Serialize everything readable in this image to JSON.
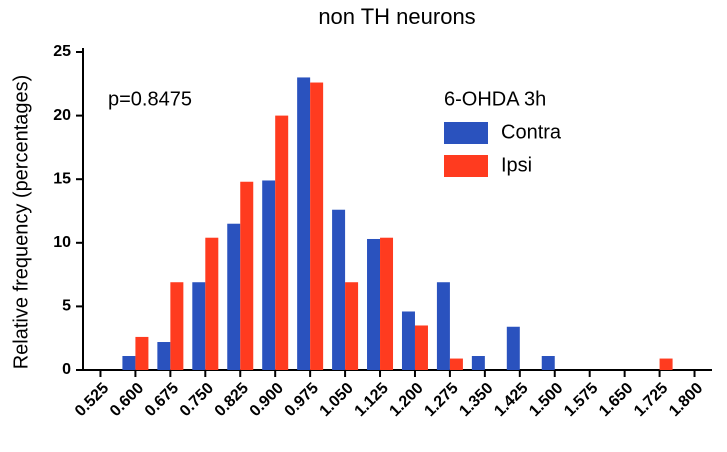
{
  "chart_data": {
    "type": "bar",
    "title": "non TH neurons",
    "y_label": "Relative frequency (percentages)",
    "annotation": "p=0.8475",
    "legend_title": "6-OHDA 3h",
    "categories": [
      "0.525",
      "0.600",
      "0.675",
      "0.750",
      "0.825",
      "0.900",
      "0.975",
      "1.050",
      "1.125",
      "1.200",
      "1.275",
      "1.350",
      "1.425",
      "1.500",
      "1.575",
      "1.650",
      "1.725",
      "1.800"
    ],
    "series": [
      {
        "name": "Contra",
        "color": "#2a52be",
        "values": [
          0,
          1.1,
          2.2,
          6.9,
          11.5,
          14.9,
          23,
          12.6,
          10.3,
          4.6,
          6.9,
          1.1,
          3.4,
          1.1,
          0,
          0,
          0,
          0
        ]
      },
      {
        "name": "Ipsi",
        "color": "#ff3b1f",
        "values": [
          0,
          2.6,
          6.9,
          10.4,
          14.8,
          20,
          22.6,
          6.9,
          10.4,
          3.5,
          0.9,
          0,
          0,
          0,
          0,
          0,
          0.9,
          0
        ]
      }
    ],
    "ylim": [
      0,
      25
    ],
    "yticks": [
      0,
      5,
      10,
      15,
      20,
      25
    ],
    "grid": false
  }
}
